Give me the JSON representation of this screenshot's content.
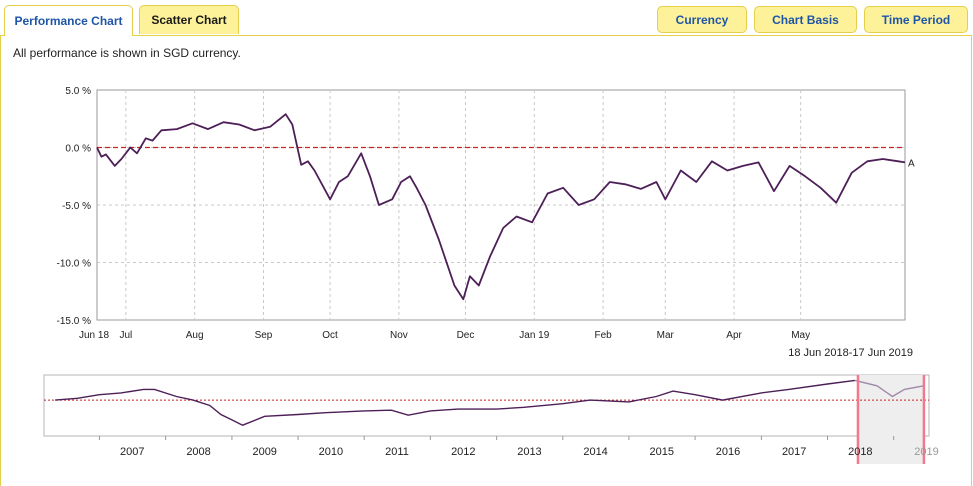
{
  "tabs": [
    {
      "label": "Performance Chart",
      "active": true
    },
    {
      "label": "Scatter Chart",
      "active": false
    }
  ],
  "buttons": {
    "currency": "Currency",
    "chart_basis": "Chart Basis",
    "time_period": "Time Period"
  },
  "note": "All performance is shown in SGD currency.",
  "colors": {
    "series": "#4d1f57",
    "zero_line": "#cc2222",
    "tab_bg": "#fdf29a",
    "tab_border": "#e6cf4a",
    "active_tab_text": "#1f55a7",
    "selection_border": "#f07a8c"
  },
  "chart_data": [
    {
      "type": "line",
      "series": [
        {
          "name": "A",
          "x": [
            "2018-06-18",
            "2018-06-20",
            "2018-06-22",
            "2018-06-26",
            "2018-06-29",
            "2018-07-03",
            "2018-07-06",
            "2018-07-10",
            "2018-07-13",
            "2018-07-17",
            "2018-07-24",
            "2018-07-31",
            "2018-08-07",
            "2018-08-14",
            "2018-08-21",
            "2018-08-28",
            "2018-09-04",
            "2018-09-11",
            "2018-09-14",
            "2018-09-18",
            "2018-09-21",
            "2018-09-24",
            "2018-10-01",
            "2018-10-05",
            "2018-10-09",
            "2018-10-15",
            "2018-10-19",
            "2018-10-23",
            "2018-10-29",
            "2018-11-02",
            "2018-11-06",
            "2018-11-09",
            "2018-11-13",
            "2018-11-19",
            "2018-11-26",
            "2018-11-30",
            "2018-12-03",
            "2018-12-07",
            "2018-12-12",
            "2018-12-18",
            "2018-12-24",
            "2018-12-31",
            "2019-01-07",
            "2019-01-14",
            "2019-01-21",
            "2019-01-28",
            "2019-02-04",
            "2019-02-11",
            "2019-02-18",
            "2019-02-25",
            "2019-03-01",
            "2019-03-08",
            "2019-03-15",
            "2019-03-22",
            "2019-03-29",
            "2019-04-05",
            "2019-04-12",
            "2019-04-19",
            "2019-04-26",
            "2019-05-03",
            "2019-05-10",
            "2019-05-17",
            "2019-05-24",
            "2019-05-31",
            "2019-06-07",
            "2019-06-14",
            "2019-06-17"
          ],
          "y": [
            0.0,
            -0.8,
            -0.6,
            -1.6,
            -1.0,
            0.0,
            -0.5,
            0.8,
            0.6,
            1.5,
            1.6,
            2.1,
            1.6,
            2.2,
            2.0,
            1.5,
            1.8,
            2.9,
            2.0,
            -1.5,
            -1.2,
            -2.0,
            -4.5,
            -3.0,
            -2.5,
            -0.5,
            -2.5,
            -5.0,
            -4.5,
            -3.0,
            -2.5,
            -3.5,
            -5.0,
            -8.0,
            -12.0,
            -13.2,
            -11.2,
            -12.0,
            -9.5,
            -7.0,
            -6.0,
            -6.5,
            -4.0,
            -3.5,
            -5.0,
            -4.5,
            -3.0,
            -3.2,
            -3.6,
            -3.0,
            -4.5,
            -2.0,
            -3.0,
            -1.2,
            -2.0,
            -1.6,
            -1.3,
            -3.8,
            -1.6,
            -2.5,
            -3.5,
            -4.8,
            -2.2,
            -1.2,
            -1.0,
            -1.2,
            -1.3
          ]
        }
      ],
      "xlabel": "",
      "ylabel": "",
      "ylim": [
        -15.0,
        5.0
      ],
      "y_ticks": [
        "5.0 %",
        "0.0 %",
        "-5.0 %",
        "-10.0 %",
        "-15.0 %"
      ],
      "x_tick_labels": [
        "Jun 18",
        "Jul",
        "Aug",
        "Sep",
        "Oct",
        "Nov",
        "Dec",
        "Jan 19",
        "Feb",
        "Mar",
        "Apr",
        "May"
      ],
      "x_tick_dates": [
        "2018-06-18",
        "2018-07-01",
        "2018-08-01",
        "2018-09-01",
        "2018-10-01",
        "2018-11-01",
        "2018-12-01",
        "2019-01-01",
        "2019-02-01",
        "2019-03-01",
        "2019-04-01",
        "2019-05-01"
      ],
      "xlim": [
        "2018-06-18",
        "2019-06-17"
      ],
      "date_range": "18 Jun 2018-17 Jun 2019",
      "series_end_label": "A",
      "reference_line": 0.0,
      "grid": true
    },
    {
      "type": "line",
      "series": [
        {
          "name": "A",
          "x": [
            "2006-05-01",
            "2006-09-01",
            "2007-01-01",
            "2007-05-01",
            "2007-09-01",
            "2007-11-01",
            "2008-03-01",
            "2008-06-01",
            "2008-09-01",
            "2008-11-01",
            "2009-01-01",
            "2009-03-01",
            "2009-07-01",
            "2010-01-01",
            "2010-06-01",
            "2011-01-01",
            "2011-06-01",
            "2011-09-01",
            "2012-01-01",
            "2012-06-01",
            "2013-01-01",
            "2013-06-01",
            "2014-01-01",
            "2014-06-01",
            "2015-01-01",
            "2015-06-01",
            "2015-09-01",
            "2016-01-01",
            "2016-06-01",
            "2017-01-01",
            "2017-06-01",
            "2018-01-01",
            "2018-06-01",
            "2018-10-01",
            "2018-12-25",
            "2019-03-01",
            "2019-06-17"
          ],
          "y": [
            0,
            0.5,
            1.5,
            2.0,
            3.0,
            3.0,
            1.0,
            0,
            -1.5,
            -4.0,
            -5.5,
            -7.0,
            -4.5,
            -4.0,
            -3.5,
            -3.0,
            -2.8,
            -4.2,
            -3.0,
            -2.5,
            -2.5,
            -2.0,
            -1.0,
            0,
            -0.5,
            1.0,
            2.5,
            1.5,
            0,
            2.0,
            3.0,
            4.5,
            5.5,
            4.0,
            1.0,
            3.0,
            4.0
          ]
        }
      ],
      "x_tick_labels": [
        "2007",
        "2008",
        "2009",
        "2010",
        "2011",
        "2012",
        "2013",
        "2014",
        "2015",
        "2016",
        "2017",
        "2018",
        "2019"
      ],
      "xlim": [
        "2006-03-01",
        "2019-07-15"
      ],
      "ylim": [
        -10.0,
        7.0
      ],
      "reference_line": 0.0,
      "selection": [
        "2018-06-18",
        "2019-06-17"
      ]
    }
  ]
}
